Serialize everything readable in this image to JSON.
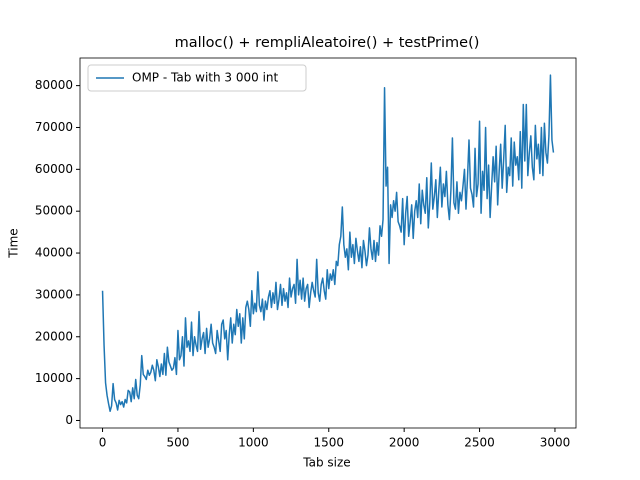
{
  "chart_data": {
    "type": "line",
    "title": "malloc() + rempliAleatoire() + testPrime()",
    "x_label": "Tab size",
    "y_label": "Time",
    "legend": "upper left",
    "grid": false,
    "xlim": [
      -149.5,
      3139.5
    ],
    "ylim": [
      -1800,
      86600
    ],
    "xticks": [
      0,
      500,
      1000,
      1500,
      2000,
      2500,
      3000
    ],
    "yticks": [
      0,
      10000,
      20000,
      30000,
      40000,
      50000,
      60000,
      70000,
      80000
    ],
    "x": [
      0,
      10,
      20,
      30,
      40,
      50,
      60,
      70,
      80,
      90,
      100,
      110,
      120,
      130,
      140,
      150,
      160,
      170,
      180,
      190,
      200,
      210,
      220,
      230,
      240,
      250,
      260,
      270,
      280,
      290,
      300,
      310,
      320,
      330,
      340,
      350,
      360,
      370,
      380,
      390,
      400,
      410,
      420,
      430,
      440,
      450,
      460,
      470,
      480,
      490,
      500,
      510,
      520,
      530,
      540,
      550,
      560,
      570,
      580,
      590,
      600,
      610,
      620,
      630,
      640,
      650,
      660,
      670,
      680,
      690,
      700,
      710,
      720,
      730,
      740,
      750,
      760,
      770,
      780,
      790,
      800,
      810,
      820,
      830,
      840,
      850,
      860,
      870,
      880,
      890,
      900,
      910,
      920,
      930,
      940,
      950,
      960,
      970,
      980,
      990,
      1000,
      1010,
      1020,
      1030,
      1040,
      1050,
      1060,
      1070,
      1080,
      1090,
      1100,
      1110,
      1120,
      1130,
      1140,
      1150,
      1160,
      1170,
      1180,
      1190,
      1200,
      1210,
      1220,
      1230,
      1240,
      1250,
      1260,
      1270,
      1280,
      1290,
      1300,
      1310,
      1320,
      1330,
      1340,
      1350,
      1360,
      1370,
      1380,
      1390,
      1400,
      1410,
      1420,
      1430,
      1440,
      1450,
      1460,
      1470,
      1480,
      1490,
      1500,
      1510,
      1520,
      1530,
      1540,
      1550,
      1560,
      1570,
      1580,
      1590,
      1600,
      1610,
      1620,
      1630,
      1640,
      1650,
      1660,
      1670,
      1680,
      1690,
      1700,
      1710,
      1720,
      1730,
      1740,
      1750,
      1760,
      1770,
      1780,
      1790,
      1800,
      1810,
      1820,
      1830,
      1840,
      1850,
      1860,
      1870,
      1880,
      1890,
      1900,
      1910,
      1920,
      1930,
      1940,
      1950,
      1960,
      1970,
      1980,
      1990,
      2000,
      2010,
      2020,
      2030,
      2040,
      2050,
      2060,
      2070,
      2080,
      2090,
      2100,
      2110,
      2120,
      2130,
      2140,
      2150,
      2160,
      2170,
      2180,
      2190,
      2200,
      2210,
      2220,
      2230,
      2240,
      2250,
      2260,
      2270,
      2280,
      2290,
      2300,
      2310,
      2320,
      2330,
      2340,
      2350,
      2360,
      2370,
      2380,
      2390,
      2400,
      2410,
      2420,
      2430,
      2440,
      2450,
      2460,
      2470,
      2480,
      2490,
      2500,
      2510,
      2520,
      2530,
      2540,
      2550,
      2560,
      2570,
      2580,
      2590,
      2600,
      2610,
      2620,
      2630,
      2640,
      2650,
      2660,
      2670,
      2680,
      2690,
      2700,
      2710,
      2720,
      2730,
      2740,
      2750,
      2760,
      2770,
      2780,
      2790,
      2800,
      2810,
      2820,
      2830,
      2840,
      2850,
      2860,
      2870,
      2880,
      2890,
      2900,
      2910,
      2920,
      2930,
      2940,
      2950,
      2960,
      2970,
      2980,
      2990
    ],
    "series": [
      {
        "name": "OMP - Tab with 3 000 int",
        "color": "#1f77b4",
        "values": [
          31000,
          18000,
          9000,
          6000,
          4000,
          2200,
          3500,
          8800,
          5000,
          4200,
          2500,
          4800,
          3800,
          4500,
          3200,
          5000,
          4200,
          7200,
          6800,
          4500,
          7800,
          5200,
          9800,
          6000,
          5200,
          8500,
          15500,
          11000,
          10500,
          9800,
          12000,
          10800,
          11500,
          13200,
          12000,
          9500,
          14500,
          12800,
          10500,
          13500,
          11000,
          16000,
          10800,
          17500,
          14000,
          13000,
          12000,
          12500,
          15000,
          11000,
          21500,
          14500,
          15500,
          20000,
          13000,
          24500,
          17500,
          19000,
          16500,
          23500,
          15500,
          20000,
          18000,
          16500,
          26000,
          17000,
          19500,
          21000,
          16000,
          22000,
          17500,
          19500,
          23000,
          18500,
          17500,
          16000,
          21500,
          19000,
          16500,
          23000,
          24000,
          19500,
          21500,
          14500,
          20500,
          24500,
          18500,
          23000,
          20500,
          26500,
          22500,
          25500,
          18500,
          24500,
          19500,
          27000,
          28500,
          26500,
          22500,
          31000,
          25500,
          28000,
          26000,
          35500,
          27500,
          26000,
          29000,
          24000,
          28500,
          26500,
          29500,
          31000,
          27000,
          30500,
          28000,
          33000,
          26500,
          29000,
          32500,
          27500,
          31500,
          28500,
          30500,
          27000,
          34000,
          29500,
          31500,
          32500,
          28000,
          38500,
          30000,
          33500,
          29000,
          34000,
          28500,
          31500,
          32500,
          27000,
          30500,
          33000,
          31000,
          29500,
          38500,
          30500,
          28500,
          32500,
          34000,
          31000,
          29000,
          36000,
          31500,
          35000,
          33500,
          36000,
          32500,
          38000,
          37000,
          42000,
          44000,
          51000,
          42000,
          39000,
          41000,
          36000,
          45000,
          39000,
          42000,
          37500,
          43500,
          40500,
          38000,
          41500,
          36500,
          43000,
          40500,
          37000,
          39500,
          46000,
          41000,
          38500,
          43000,
          38000,
          42500,
          39500,
          46500,
          44000,
          48000,
          79500,
          56000,
          60500,
          37500,
          51500,
          48500,
          52500,
          50000,
          54500,
          47500,
          46500,
          45000,
          53000,
          42000,
          49500,
          53500,
          44000,
          47500,
          51500,
          43500,
          50000,
          52500,
          48500,
          56500,
          47000,
          55000,
          51500,
          49500,
          58000,
          46000,
          52000,
          61500,
          50500,
          53500,
          57500,
          48500,
          55000,
          60500,
          51000,
          56500,
          53500,
          59500,
          51500,
          48000,
          55000,
          67500,
          52000,
          50500,
          57000,
          49500,
          54500,
          52500,
          56000,
          60000,
          50500,
          58000,
          67000,
          55500,
          54000,
          51000,
          65000,
          53500,
          56500,
          71500,
          49500,
          59500,
          55000,
          70000,
          53000,
          61000,
          48500,
          56000,
          63000,
          57000,
          65500,
          51500,
          59500,
          66000,
          55500,
          62500,
          70500,
          54500,
          60500,
          58500,
          67500,
          56000,
          66500,
          61000,
          63000,
          57500,
          69000,
          55500,
          75500,
          62000,
          75500,
          58500,
          64000,
          68000,
          60500,
          57500,
          70500,
          62500,
          66000,
          59000,
          70000,
          58500,
          71000,
          64000,
          61500,
          68000,
          82500,
          67000,
          64000
        ]
      }
    ]
  }
}
